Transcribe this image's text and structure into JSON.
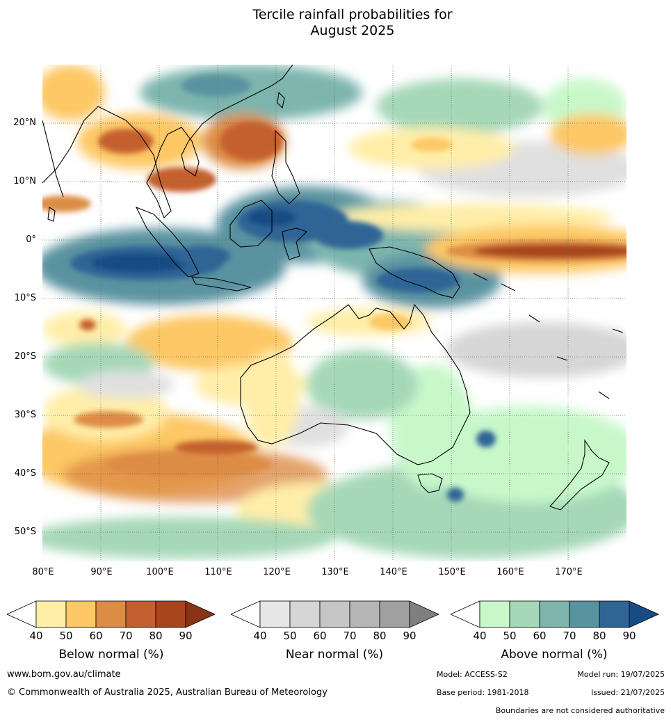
{
  "title_line1": "Tercile rainfall probabilities for",
  "title_line2": "August 2025",
  "map": {
    "lat_labels": [
      "20°N",
      "10°N",
      "0°",
      "10°S",
      "20°S",
      "30°S",
      "40°S",
      "50°S"
    ],
    "lon_labels": [
      "80°E",
      "90°E",
      "100°E",
      "110°E",
      "120°E",
      "130°E",
      "140°E",
      "150°E",
      "160°E",
      "170°E"
    ]
  },
  "legends": [
    {
      "name": "below",
      "title": "Below normal (%)",
      "ticks": [
        "40",
        "50",
        "60",
        "70",
        "80",
        "90"
      ],
      "colors": [
        "#ffeea8",
        "#fdc865",
        "#dd8c45",
        "#c4602f",
        "#a8451f",
        "#8a3315"
      ]
    },
    {
      "name": "near",
      "title": "Near normal (%)",
      "ticks": [
        "40",
        "50",
        "60",
        "70",
        "80",
        "90"
      ],
      "colors": [
        "#e6e6e6",
        "#d6d6d6",
        "#c6c6c6",
        "#b5b5b5",
        "#a0a0a0",
        "#7f7f7f"
      ]
    },
    {
      "name": "above",
      "title": "Above normal (%)",
      "ticks": [
        "40",
        "50",
        "60",
        "70",
        "80",
        "90"
      ],
      "colors": [
        "#c8f8ca",
        "#a5d8b8",
        "#7db5ae",
        "#5a93a0",
        "#2f6596",
        "#174b84"
      ]
    }
  ],
  "footer": {
    "website": "www.bom.gov.au/climate",
    "copyright": "© Commonwealth of Australia 2025, Australian Bureau of Meteorology",
    "model": "Model: ACCESS-S2",
    "model_run": "Model run: 19/07/2025",
    "base_period": "Base period: 1981-2018",
    "issued": "Issued: 21/07/2025",
    "disclaimer": "Boundaries are not considered authoritative"
  }
}
